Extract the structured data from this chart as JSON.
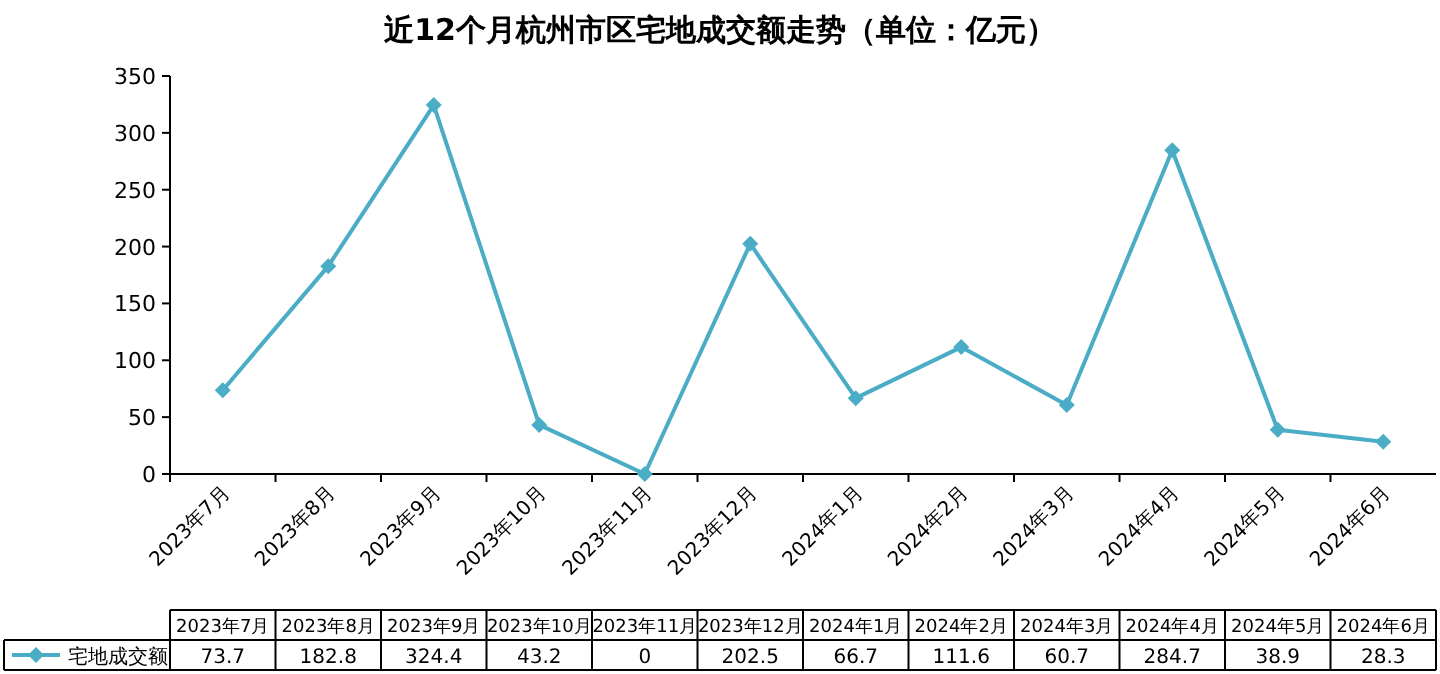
{
  "chart_data": {
    "type": "line",
    "title": "近12个月杭州市区宅地成交额走势（单位：亿元）",
    "categories": [
      "2023年7月",
      "2023年8月",
      "2023年9月",
      "2023年10月",
      "2023年11月",
      "2023年12月",
      "2024年1月",
      "2024年2月",
      "2024年3月",
      "2024年4月",
      "2024年5月",
      "2024年6月"
    ],
    "series": [
      {
        "name": "宅地成交额",
        "color": "#4bacc6",
        "values": [
          73.7,
          182.8,
          324.4,
          43.2,
          0,
          202.5,
          66.7,
          111.6,
          60.7,
          284.7,
          38.9,
          28.3
        ],
        "value_labels": [
          "73.7",
          "182.8",
          "324.4",
          "43.2",
          "0",
          "202.5",
          "66.7",
          "111.6",
          "60.7",
          "284.7",
          "38.9",
          "28.3"
        ]
      }
    ],
    "ylim": [
      0,
      350
    ],
    "yticks": [
      0,
      50,
      100,
      150,
      200,
      250,
      300,
      350
    ],
    "grid": false,
    "legend": "bottom",
    "marker": "diamond",
    "line_style": "solid",
    "data_labels": true
  }
}
